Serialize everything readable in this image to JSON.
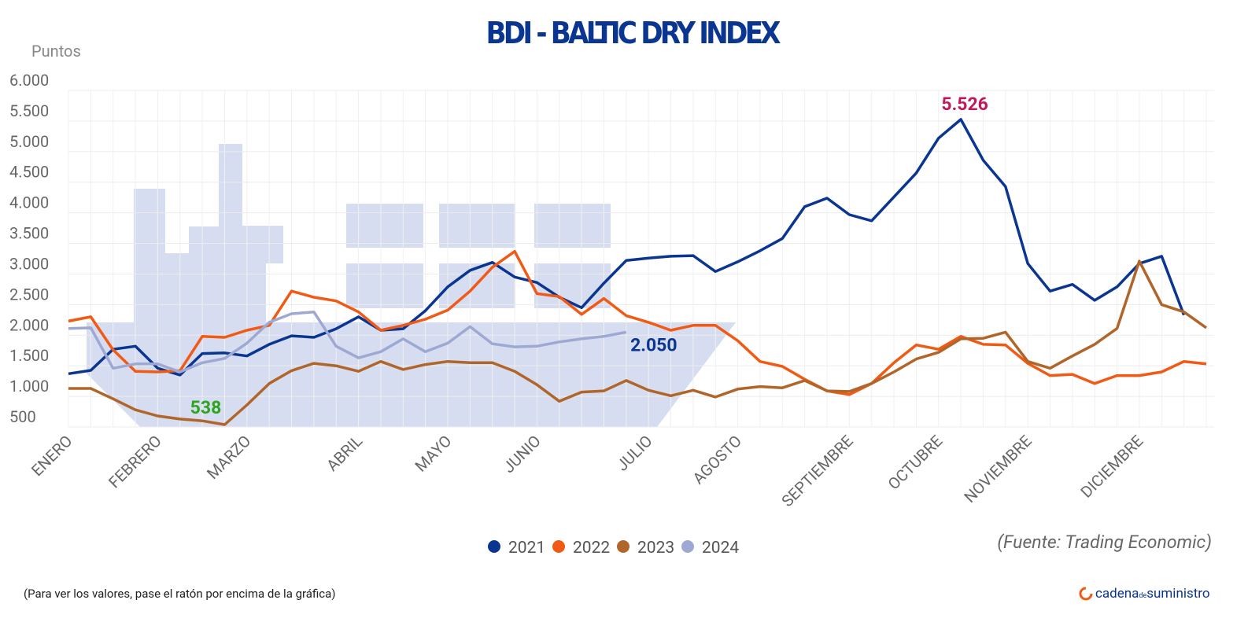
{
  "chart_data": {
    "type": "line",
    "title": "BDI - BALTIC DRY INDEX",
    "y_label": "Puntos",
    "source": "(Fuente: Trading Economic)",
    "note": "(Para ver los valores, pase el ratón por encima de la gráfica)",
    "logo": [
      "cadena",
      "de",
      "suministro"
    ],
    "categories": [
      "ENERO",
      null,
      null,
      null,
      "FEBRERO",
      null,
      null,
      null,
      "MARZO",
      null,
      null,
      null,
      null,
      "ABRIL",
      null,
      null,
      null,
      "MAYO",
      null,
      null,
      null,
      "JUNIO",
      null,
      null,
      null,
      null,
      "JULIO",
      null,
      null,
      null,
      "AGOSTO",
      null,
      null,
      null,
      null,
      "SEPTIEMBRE",
      null,
      null,
      null,
      "OCTUBRE",
      null,
      null,
      null,
      "NOVIEMBRE",
      null,
      null,
      null,
      null,
      "DICIEMBRE",
      null,
      null,
      null
    ],
    "ylim": [
      500,
      6000
    ],
    "yticks": [
      500,
      {
        "value": 1000,
        "label": "1.000"
      },
      {
        "value": 1500,
        "label": "1.500"
      },
      {
        "value": 2000,
        "label": "2.000"
      },
      {
        "value": 2500,
        "label": "2.500"
      },
      {
        "value": 3000,
        "label": "3.000"
      },
      {
        "value": 3500,
        "label": "3.500"
      },
      {
        "value": 4000,
        "label": "4.000"
      },
      {
        "value": 4500,
        "label": "4.500"
      },
      {
        "value": 5000,
        "label": "5.000"
      },
      {
        "value": 5500,
        "label": "5.500"
      },
      {
        "value": 6000,
        "label": "6.000"
      }
    ],
    "grid": true,
    "series": [
      {
        "name": "2021",
        "color": "#0a3591",
        "label_color": "#c2185b",
        "values": [
          1370,
          1425,
          1770,
          1820,
          1460,
          1350,
          1700,
          1710,
          1660,
          1850,
          1990,
          1965,
          2105,
          2300,
          2080,
          2105,
          2400,
          2790,
          3060,
          3190,
          2950,
          2860,
          2620,
          2450,
          2850,
          3220,
          3260,
          3290,
          3300,
          3040,
          3200,
          3380,
          3580,
          4100,
          4240,
          3970,
          3870,
          4260,
          4650,
          5220,
          5526,
          4860,
          4430,
          3170,
          2720,
          2830,
          2570,
          2790,
          3170,
          3290,
          2330,
          null
        ],
        "value_labels": [
          null,
          null,
          null,
          null,
          null,
          null,
          null,
          null,
          null,
          null,
          null,
          null,
          null,
          null,
          null,
          null,
          null,
          null,
          null,
          null,
          null,
          null,
          null,
          null,
          null,
          null,
          null,
          null,
          null,
          null,
          null,
          null,
          null,
          null,
          null,
          null,
          null,
          null,
          null,
          null,
          "5.526",
          null,
          null,
          null,
          null,
          null,
          null,
          null,
          null,
          null,
          null,
          null
        ]
      },
      {
        "name": "2022",
        "color": "#f05a14",
        "values": [
          2230,
          2300,
          1760,
          1410,
          1400,
          1420,
          1980,
          1965,
          2080,
          2160,
          2720,
          2620,
          2560,
          2380,
          2080,
          2160,
          2260,
          2410,
          2720,
          3110,
          3370,
          2680,
          2630,
          2340,
          2600,
          2320,
          2210,
          2080,
          2160,
          2160,
          1910,
          1570,
          1490,
          1280,
          1090,
          1030,
          1210,
          1550,
          1840,
          1770,
          1980,
          1850,
          1840,
          1540,
          1340,
          1360,
          1210,
          1340,
          1340,
          1400,
          1570,
          1530
        ]
      },
      {
        "name": "2023",
        "color": "#b0662a",
        "label_color": "#2ea41f",
        "values": [
          1130,
          1130,
          960,
          780,
          680,
          630,
          600,
          538,
          860,
          1210,
          1420,
          1540,
          1500,
          1410,
          1570,
          1440,
          1520,
          1570,
          1550,
          1550,
          1410,
          1190,
          920,
          1070,
          1090,
          1260,
          1100,
          1010,
          1100,
          990,
          1120,
          1160,
          1140,
          1260,
          1090,
          1080,
          1210,
          1400,
          1610,
          1720,
          1940,
          1950,
          2050,
          1570,
          1460,
          1660,
          1850,
          2110,
          3210,
          2500,
          2380,
          2120
        ],
        "value_labels": [
          null,
          null,
          null,
          null,
          null,
          null,
          null,
          "538",
          null,
          null,
          null,
          null,
          null,
          null,
          null,
          null,
          null,
          null,
          null,
          null,
          null,
          null,
          null,
          null,
          null,
          null,
          null,
          null,
          null,
          null,
          null,
          null,
          null,
          null,
          null,
          null,
          null,
          null,
          null,
          null,
          null,
          null,
          null,
          null,
          null,
          null,
          null,
          null,
          null,
          null,
          null,
          null
        ]
      },
      {
        "name": "2024",
        "color": "#9ea9d3",
        "label_color": "#0a3591",
        "values": [
          2110,
          2120,
          1460,
          1530,
          1530,
          1400,
          1550,
          1620,
          1870,
          2210,
          2350,
          2380,
          1820,
          1630,
          1730,
          1940,
          1730,
          1870,
          2140,
          1860,
          1810,
          1820,
          1890,
          1940,
          1980,
          2050,
          null,
          null,
          null,
          null,
          null,
          null,
          null,
          null,
          null,
          null,
          null,
          null,
          null,
          null,
          null,
          null,
          null,
          null,
          null,
          null,
          null,
          null,
          null,
          null,
          null,
          null
        ],
        "value_labels": [
          null,
          null,
          null,
          null,
          null,
          null,
          null,
          null,
          null,
          null,
          null,
          null,
          null,
          null,
          null,
          null,
          null,
          null,
          null,
          null,
          null,
          null,
          null,
          null,
          null,
          "2.050",
          null,
          null,
          null,
          null,
          null,
          null,
          null,
          null,
          null,
          null,
          null,
          null,
          null,
          null,
          null,
          null,
          null,
          null,
          null,
          null,
          null,
          null,
          null,
          null,
          null,
          null
        ]
      }
    ]
  }
}
